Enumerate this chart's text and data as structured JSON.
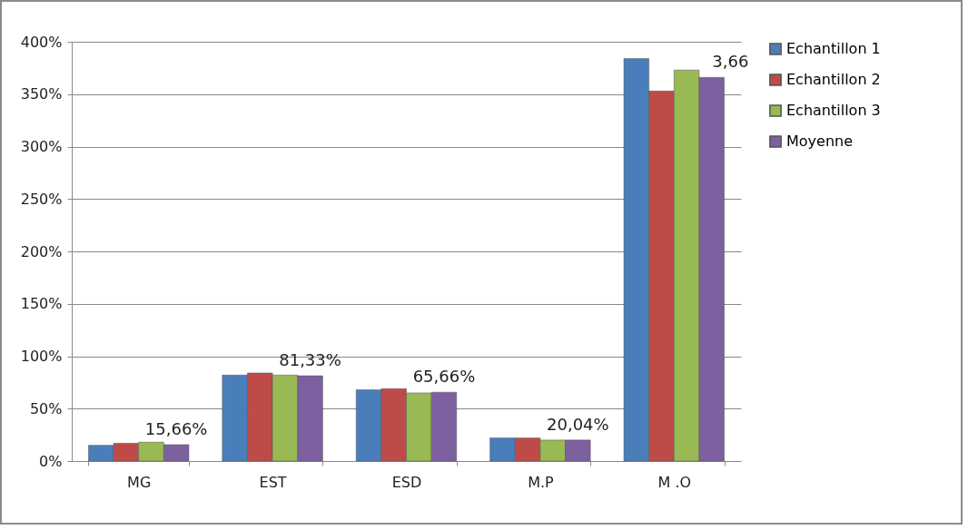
{
  "chart_data": {
    "type": "bar",
    "categories": [
      "MG",
      "EST",
      "ESD",
      "M.P",
      "M .O"
    ],
    "series": [
      {
        "name": "Echantillon 1",
        "color": "#4a7ebb",
        "values": [
          15,
          82,
          68,
          22,
          384
        ]
      },
      {
        "name": "Echantillon 2",
        "color": "#be4b48",
        "values": [
          17,
          84,
          69,
          22,
          353
        ]
      },
      {
        "name": "Echantillon 3",
        "color": "#98b954",
        "values": [
          18,
          82,
          65,
          20,
          373
        ]
      },
      {
        "name": "Moyenne",
        "color": "#7d60a0",
        "values": [
          15.66,
          81.33,
          65.66,
          20.04,
          366
        ],
        "value_labels": [
          "15,66%",
          "81,33%",
          "65,66%",
          "20,04%",
          null
        ]
      }
    ],
    "annotations": [
      {
        "text": "3,66",
        "x": "M .O",
        "y": 366
      }
    ],
    "ylim": [
      0,
      400
    ],
    "yticks": [
      {
        "value": 0,
        "label": "0%"
      },
      {
        "value": 50,
        "label": "50%"
      },
      {
        "value": 100,
        "label": "100%"
      },
      {
        "value": 150,
        "label": "150%"
      },
      {
        "value": 200,
        "label": "200%"
      },
      {
        "value": 250,
        "label": "250%"
      },
      {
        "value": 300,
        "label": "300%"
      },
      {
        "value": 350,
        "label": "350%"
      },
      {
        "value": 400,
        "label": "400%"
      }
    ],
    "grid": "y",
    "legend": "right"
  }
}
